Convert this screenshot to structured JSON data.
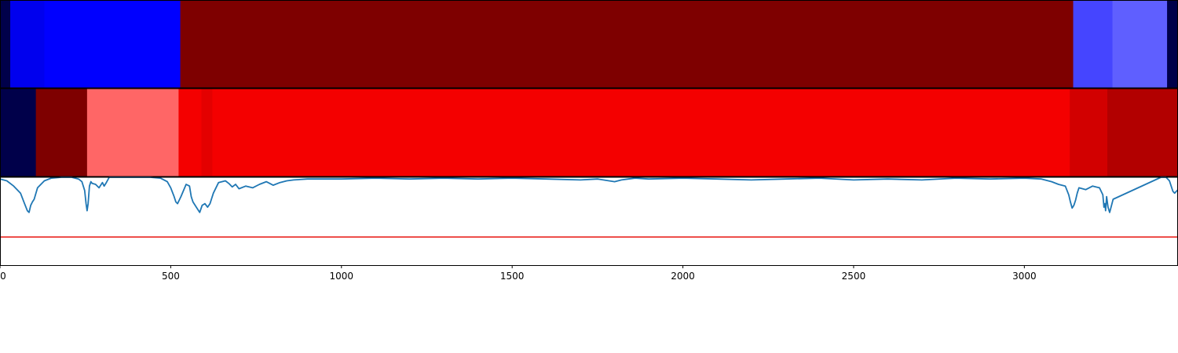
{
  "chart_data": [
    {
      "type": "heatmap",
      "xlim": [
        0,
        3450
      ],
      "colormap": "seismic",
      "segments": [
        {
          "start": 0,
          "end": 30,
          "color": "#00004a"
        },
        {
          "start": 30,
          "end": 130,
          "color": "#0000ee"
        },
        {
          "start": 130,
          "end": 528,
          "color": "#0000ff"
        },
        {
          "start": 528,
          "end": 3143,
          "color": "#7e0000"
        },
        {
          "start": 3143,
          "end": 3258,
          "color": "#4545ff"
        },
        {
          "start": 3258,
          "end": 3418,
          "color": "#5f5fff"
        },
        {
          "start": 3418,
          "end": 3450,
          "color": "#00004a"
        }
      ]
    },
    {
      "type": "heatmap",
      "xlim": [
        0,
        3450
      ],
      "colormap": "seismic",
      "segments": [
        {
          "start": 0,
          "end": 105,
          "color": "#00004a"
        },
        {
          "start": 105,
          "end": 255,
          "color": "#7e0000"
        },
        {
          "start": 255,
          "end": 523,
          "color": "#ff6666"
        },
        {
          "start": 523,
          "end": 590,
          "color": "#f40000"
        },
        {
          "start": 590,
          "end": 622,
          "color": "#e40000"
        },
        {
          "start": 622,
          "end": 3133,
          "color": "#f40000"
        },
        {
          "start": 3133,
          "end": 3243,
          "color": "#d20000"
        },
        {
          "start": 3243,
          "end": 3450,
          "color": "#b20000"
        }
      ]
    },
    {
      "type": "line",
      "xlim": [
        0,
        3450
      ],
      "ylim": [
        0,
        1
      ],
      "xticks": [
        0,
        500,
        1000,
        1500,
        2000,
        2500,
        3000
      ],
      "xtick_labels": [
        "0",
        "500",
        "1000",
        "1500",
        "2000",
        "2500",
        "3000"
      ],
      "line_color": "#1f77b4",
      "threshold": 0.32,
      "threshold_color": "#e8140f",
      "series": [
        {
          "x": [
            0,
            20,
            40,
            60,
            70,
            80,
            85,
            90,
            95,
            100,
            110,
            130,
            150,
            180,
            210,
            230,
            240,
            248,
            252,
            255,
            258,
            262,
            266,
            270,
            280,
            290,
            300,
            305,
            310,
            320,
            380,
            440,
            470,
            490,
            500,
            510,
            515,
            520,
            530,
            545,
            555,
            560,
            565,
            575,
            585,
            592,
            600,
            608,
            615,
            625,
            640,
            660,
            670,
            680,
            690,
            700,
            720,
            740,
            760,
            780,
            800,
            820,
            840,
            860,
            900,
            1000,
            1100,
            1200,
            1300,
            1400,
            1500,
            1600,
            1700,
            1750,
            1800,
            1820,
            1840,
            1860,
            1900,
            2000,
            2100,
            2200,
            2300,
            2400,
            2500,
            2600,
            2700,
            2800,
            2900,
            3000,
            3050,
            3080,
            3100,
            3120,
            3130,
            3135,
            3140,
            3145,
            3150,
            3155,
            3160,
            3180,
            3200,
            3220,
            3230,
            3233,
            3236,
            3238,
            3241,
            3245,
            3250,
            3260,
            3400,
            3415,
            3425,
            3435,
            3440,
            3450
          ],
          "y": [
            0.98,
            0.96,
            0.9,
            0.82,
            0.72,
            0.62,
            0.6,
            0.68,
            0.72,
            0.75,
            0.88,
            0.96,
            0.99,
            1.0,
            1.0,
            0.98,
            0.95,
            0.85,
            0.7,
            0.62,
            0.7,
            0.9,
            0.95,
            0.93,
            0.92,
            0.88,
            0.94,
            0.9,
            0.93,
            1.0,
            1.0,
            1.0,
            0.99,
            0.95,
            0.88,
            0.78,
            0.72,
            0.7,
            0.78,
            0.92,
            0.9,
            0.78,
            0.72,
            0.66,
            0.6,
            0.68,
            0.7,
            0.66,
            0.7,
            0.82,
            0.94,
            0.96,
            0.93,
            0.89,
            0.92,
            0.87,
            0.9,
            0.88,
            0.92,
            0.95,
            0.91,
            0.94,
            0.96,
            0.97,
            0.98,
            0.98,
            0.99,
            0.98,
            0.99,
            0.98,
            0.99,
            0.98,
            0.97,
            0.98,
            0.95,
            0.97,
            0.98,
            0.99,
            0.98,
            0.99,
            0.98,
            0.97,
            0.98,
            0.99,
            0.97,
            0.98,
            0.97,
            0.99,
            0.98,
            0.99,
            0.98,
            0.95,
            0.92,
            0.9,
            0.8,
            0.72,
            0.65,
            0.68,
            0.74,
            0.82,
            0.88,
            0.86,
            0.9,
            0.88,
            0.8,
            0.66,
            0.7,
            0.62,
            0.78,
            0.66,
            0.6,
            0.75,
            1.0,
            1.0,
            0.96,
            0.84,
            0.82,
            0.86
          ]
        }
      ]
    }
  ]
}
